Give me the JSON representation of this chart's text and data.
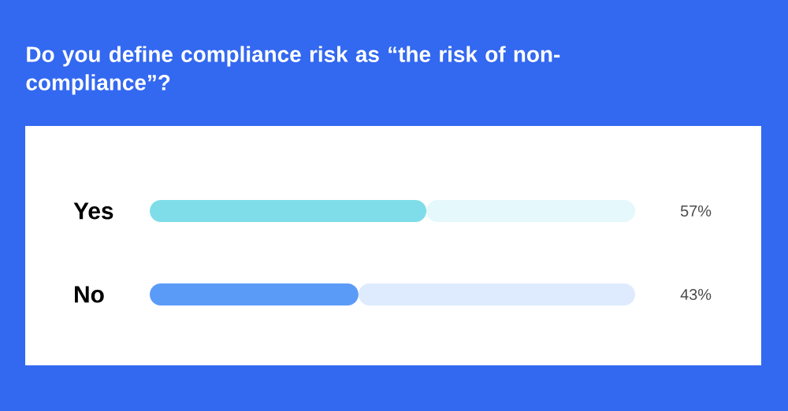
{
  "chart_data": {
    "type": "bar",
    "orientation": "horizontal",
    "stacked": true,
    "title": "Do you define compliance risk as “the risk of non-compliance”?",
    "categories": [
      "Yes",
      "No"
    ],
    "series": [
      {
        "colors": [
          "#7fdde9",
          "#5b9bf8"
        ],
        "values": [
          57,
          43
        ],
        "value_labels": [
          "57%",
          "43%"
        ]
      },
      {
        "colors": [
          "#e5f8fb",
          "#deebfe"
        ],
        "values": [
          43,
          57
        ]
      }
    ],
    "xlim": [
      0,
      100
    ]
  }
}
